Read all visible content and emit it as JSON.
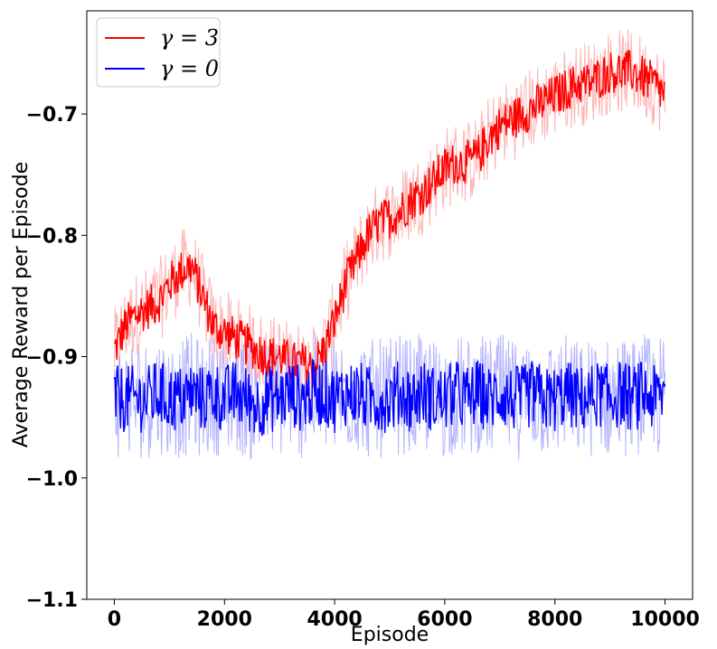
{
  "chart_data": {
    "type": "line",
    "title": "",
    "xlabel": "Episode",
    "ylabel": "Average Reward per Episode",
    "xlim": [
      -500,
      10500
    ],
    "ylim": [
      -1.1,
      -0.615
    ],
    "xticks": [
      0,
      2000,
      4000,
      6000,
      8000,
      10000
    ],
    "xtick_labels": [
      "0",
      "2000",
      "4000",
      "6000",
      "8000",
      "10000"
    ],
    "yticks": [
      -1.1,
      -1.0,
      -0.9,
      -0.8,
      -0.7
    ],
    "ytick_labels": [
      "−1.1",
      "−1.0",
      "−0.9",
      "−0.8",
      "−0.7"
    ],
    "grid": false,
    "legend_position": "top-left",
    "series": [
      {
        "name": "γ = 3",
        "color": "#ff0000",
        "band_color": "#ffb3b3",
        "x": [
          0,
          200,
          400,
          600,
          800,
          1000,
          1200,
          1400,
          1600,
          1800,
          2000,
          2200,
          2400,
          2600,
          2800,
          3000,
          3200,
          3400,
          3600,
          3800,
          4000,
          4200,
          4400,
          4600,
          4800,
          5000,
          5200,
          5400,
          5600,
          5800,
          6000,
          6200,
          6400,
          6600,
          6800,
          7000,
          7200,
          7400,
          7600,
          7800,
          8000,
          8200,
          8400,
          8600,
          8800,
          9000,
          9200,
          9400,
          9600,
          9800,
          10000
        ],
        "y": [
          -0.895,
          -0.875,
          -0.865,
          -0.86,
          -0.855,
          -0.84,
          -0.83,
          -0.825,
          -0.85,
          -0.875,
          -0.88,
          -0.885,
          -0.89,
          -0.895,
          -0.9,
          -0.9,
          -0.905,
          -0.905,
          -0.91,
          -0.895,
          -0.87,
          -0.84,
          -0.82,
          -0.8,
          -0.79,
          -0.785,
          -0.78,
          -0.77,
          -0.765,
          -0.755,
          -0.745,
          -0.74,
          -0.74,
          -0.735,
          -0.72,
          -0.71,
          -0.705,
          -0.7,
          -0.695,
          -0.69,
          -0.685,
          -0.68,
          -0.675,
          -0.675,
          -0.67,
          -0.665,
          -0.665,
          -0.665,
          -0.67,
          -0.675,
          -0.685
        ]
      },
      {
        "name": "γ = 0",
        "color": "#0000ff",
        "band_color": "#b3b3ff",
        "x": [
          0,
          200,
          400,
          600,
          800,
          1000,
          1200,
          1400,
          1600,
          1800,
          2000,
          2200,
          2400,
          2600,
          2800,
          3000,
          3200,
          3400,
          3600,
          3800,
          4000,
          4200,
          4400,
          4600,
          4800,
          5000,
          5200,
          5400,
          5600,
          5800,
          6000,
          6200,
          6400,
          6600,
          6800,
          7000,
          7200,
          7400,
          7600,
          7800,
          8000,
          8200,
          8400,
          8600,
          8800,
          9000,
          9200,
          9400,
          9600,
          9800,
          10000
        ],
        "y": [
          -0.935,
          -0.935,
          -0.935,
          -0.935,
          -0.93,
          -0.935,
          -0.935,
          -0.93,
          -0.935,
          -0.93,
          -0.935,
          -0.93,
          -0.935,
          -0.94,
          -0.935,
          -0.935,
          -0.93,
          -0.935,
          -0.93,
          -0.93,
          -0.935,
          -0.93,
          -0.93,
          -0.935,
          -0.935,
          -0.935,
          -0.93,
          -0.935,
          -0.93,
          -0.935,
          -0.935,
          -0.93,
          -0.935,
          -0.93,
          -0.935,
          -0.93,
          -0.935,
          -0.935,
          -0.93,
          -0.935,
          -0.935,
          -0.93,
          -0.935,
          -0.935,
          -0.93,
          -0.935,
          -0.93,
          -0.935,
          -0.93,
          -0.935,
          -0.93
        ]
      }
    ]
  }
}
